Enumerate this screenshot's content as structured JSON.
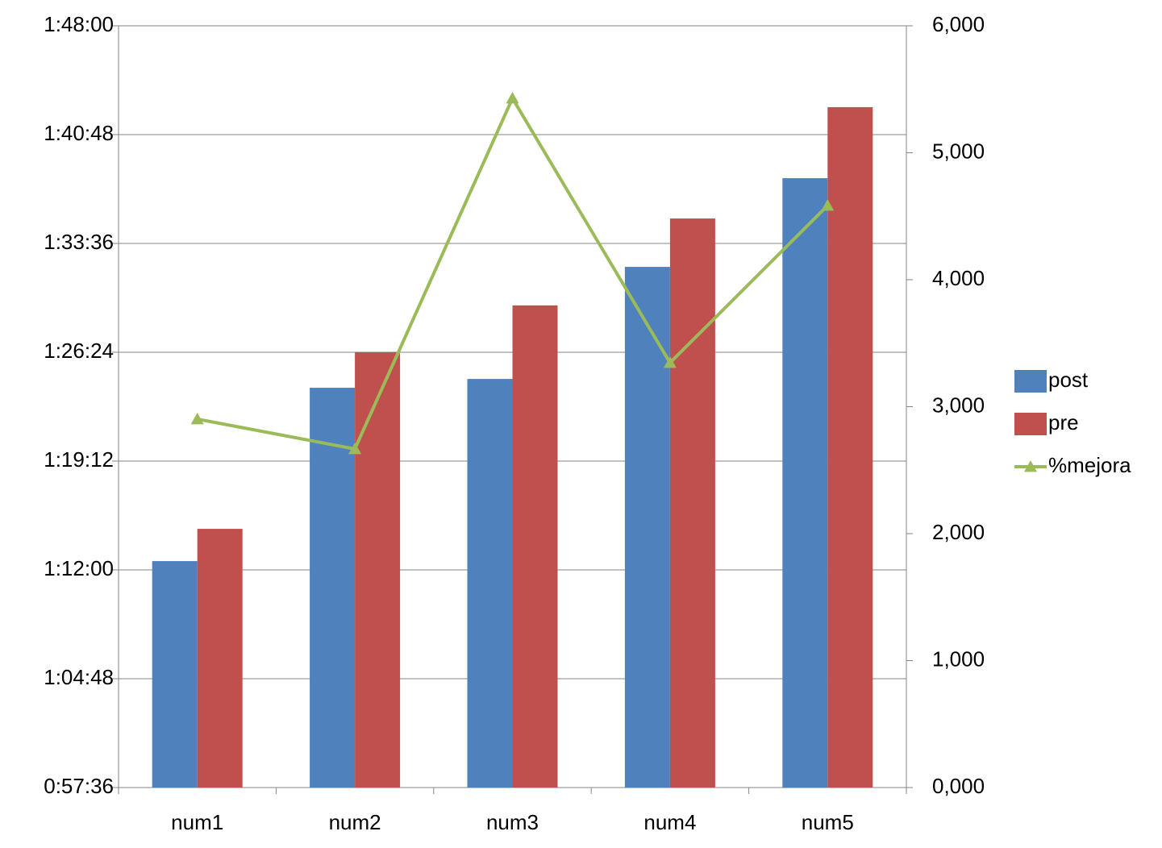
{
  "chart_data": {
    "type": "bar",
    "categories": [
      "num1",
      "num2",
      "num3",
      "num4",
      "num5"
    ],
    "series": [
      {
        "name": "post",
        "color": "#4f81bd",
        "values": [
          4355,
          5043,
          5078,
          5523,
          5875
        ]
      },
      {
        "name": "pre",
        "color": "#c0504d",
        "values": [
          4483,
          5184,
          5370,
          5715,
          6157
        ]
      },
      {
        "name": "%mejora",
        "color": "#9bbb59",
        "type": "line",
        "axis": "y2",
        "values": [
          2902,
          2667,
          5429,
          3346,
          4584
        ]
      }
    ],
    "ylim": [
      3456,
      6480
    ],
    "yticks": [
      {
        "value": 3456,
        "label": "0:57:36"
      },
      {
        "value": 3888,
        "label": "1:04:48"
      },
      {
        "value": 4320,
        "label": "1:12:00"
      },
      {
        "value": 4752,
        "label": "1:19:12"
      },
      {
        "value": 5184,
        "label": "1:26:24"
      },
      {
        "value": 5616,
        "label": "1:33:36"
      },
      {
        "value": 6048,
        "label": "1:40:48"
      },
      {
        "value": 6480,
        "label": "1:48:00"
      }
    ],
    "y2lim": [
      0,
      6000
    ],
    "y2ticks": [
      {
        "value": 0,
        "label": "0,000"
      },
      {
        "value": 1000,
        "label": "1,000"
      },
      {
        "value": 2000,
        "label": "2,000"
      },
      {
        "value": 3000,
        "label": "3,000"
      },
      {
        "value": 4000,
        "label": "4,000"
      },
      {
        "value": 5000,
        "label": "5,000"
      },
      {
        "value": 6000,
        "label": "6,000"
      }
    ],
    "grid": true,
    "legend": "right"
  }
}
